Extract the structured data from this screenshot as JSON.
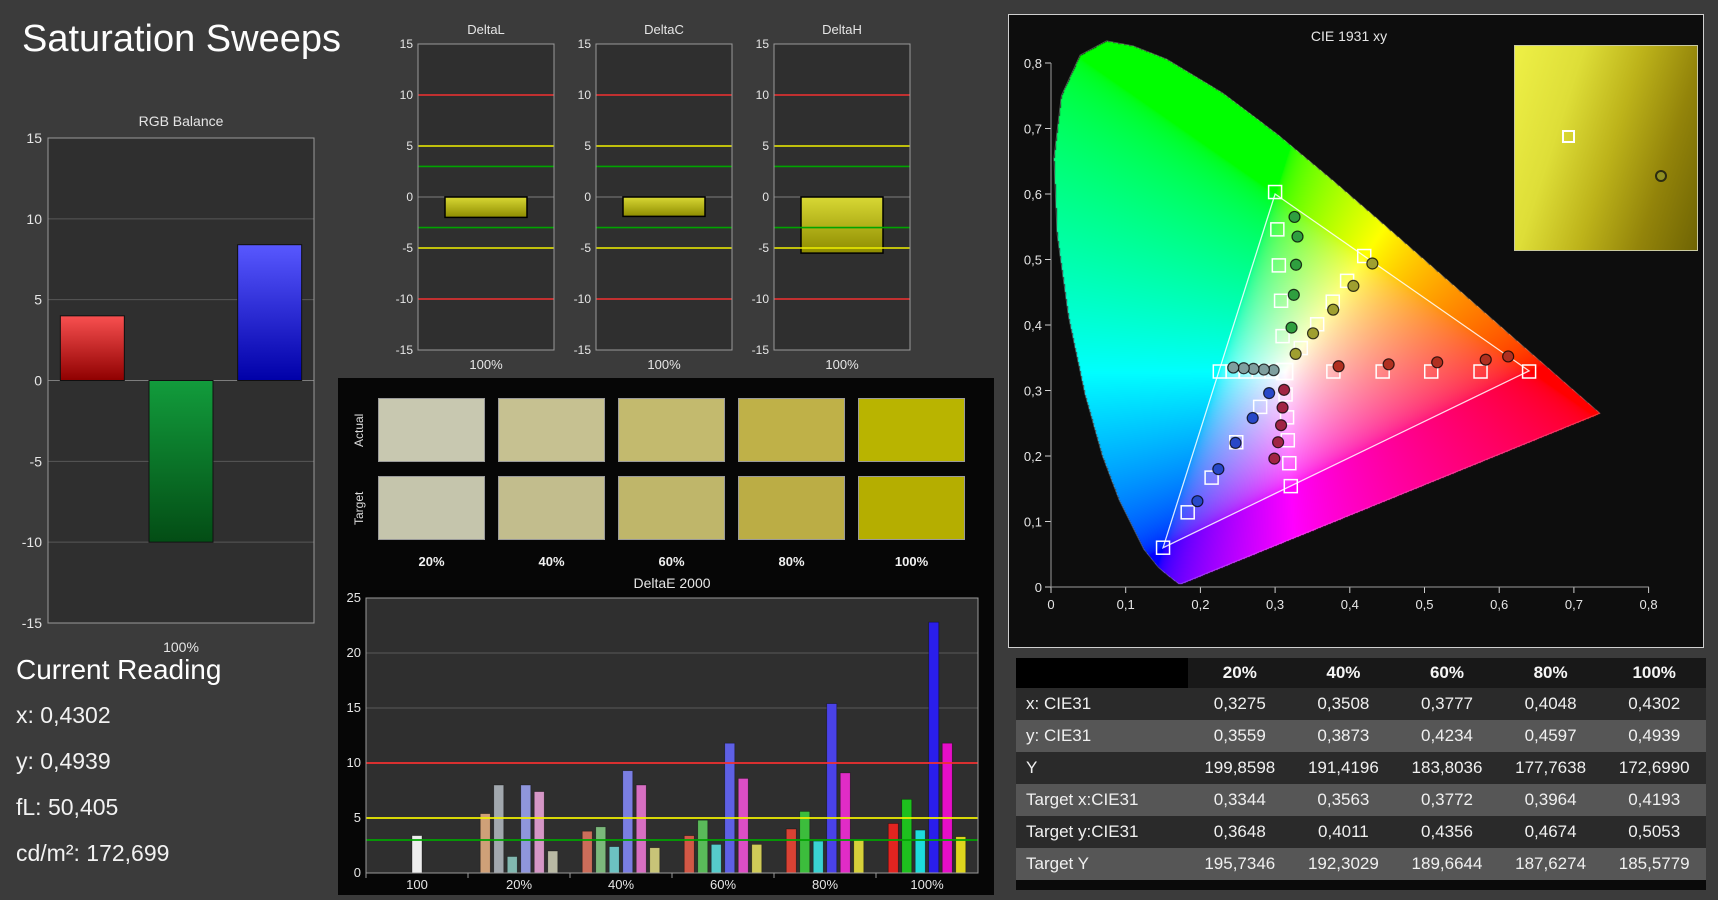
{
  "page": {
    "title": "Saturation Sweeps"
  },
  "current_reading": {
    "heading": "Current Reading",
    "items": [
      {
        "label": "x:",
        "value": "0,4302"
      },
      {
        "label": "y:",
        "value": "0,4939"
      },
      {
        "label": "fL:",
        "value": "50,405"
      },
      {
        "label": "cd/m²:",
        "value": "172,699"
      }
    ]
  },
  "colors": {
    "ref_green": "#00a400",
    "ref_yellow": "#f0f000",
    "ref_red": "#f23030",
    "grid": "#585858",
    "plot_bg": "#2f2f2f",
    "plot_border": "#9a9a9a",
    "text": "#e6e6e6"
  },
  "swatches": {
    "row_labels": [
      "Actual",
      "Target"
    ],
    "col_labels": [
      "20%",
      "40%",
      "60%",
      "80%",
      "100%"
    ],
    "actual": [
      "#c8c8b0",
      "#c6c191",
      "#c3ba6e",
      "#bfb148",
      "#b9b400"
    ],
    "target": [
      "#c5c5ac",
      "#c2bd8d",
      "#bfb66a",
      "#bbad45",
      "#b5ae00"
    ]
  },
  "table": {
    "columns": [
      "",
      "20%",
      "40%",
      "60%",
      "80%",
      "100%"
    ],
    "rows": [
      {
        "label": "x: CIE31",
        "values": [
          "0,3275",
          "0,3508",
          "0,3777",
          "0,4048",
          "0,4302"
        ]
      },
      {
        "label": "y: CIE31",
        "values": [
          "0,3559",
          "0,3873",
          "0,4234",
          "0,4597",
          "0,4939"
        ]
      },
      {
        "label": "Y",
        "values": [
          "199,8598",
          "191,4196",
          "183,8036",
          "177,7638",
          "172,6990"
        ]
      },
      {
        "label": "Target x:CIE31",
        "values": [
          "0,3344",
          "0,3563",
          "0,3772",
          "0,3964",
          "0,4193"
        ]
      },
      {
        "label": "Target y:CIE31",
        "values": [
          "0,3648",
          "0,4011",
          "0,4356",
          "0,4674",
          "0,5053"
        ]
      },
      {
        "label": "Target Y",
        "values": [
          "195,7346",
          "192,3029",
          "189,6644",
          "187,6274",
          "185,5779"
        ]
      }
    ]
  },
  "chart_data": [
    {
      "id": "rgb_balance",
      "type": "bar",
      "title": "RGB Balance",
      "xlabel": "100%",
      "ylim": [
        -15,
        15
      ],
      "ytick_step": 5,
      "categories": [
        "red",
        "green",
        "blue"
      ],
      "values": [
        4.0,
        -10.0,
        8.4
      ],
      "bar_colors": [
        [
          "#f85050",
          "#8f0000"
        ],
        [
          "#129c3c",
          "#034d15"
        ],
        [
          "#5858ff",
          "#0000a8"
        ]
      ]
    },
    {
      "id": "deltaL",
      "type": "bar",
      "title": "DeltaL",
      "xlabel": "100%",
      "ylim": [
        -15,
        15
      ],
      "ytick_step": 5,
      "categories": [
        "100%"
      ],
      "values": [
        -2.0
      ],
      "bar_color": [
        "#d8d834",
        "#8e8c00"
      ],
      "ref_lines": [
        3,
        5,
        10
      ]
    },
    {
      "id": "deltaC",
      "type": "bar",
      "title": "DeltaC",
      "xlabel": "100%",
      "ylim": [
        -15,
        15
      ],
      "ytick_step": 5,
      "categories": [
        "100%"
      ],
      "values": [
        -1.9
      ],
      "bar_color": [
        "#d8d834",
        "#8e8c00"
      ],
      "ref_lines": [
        3,
        5,
        10
      ]
    },
    {
      "id": "deltaH",
      "type": "bar",
      "title": "DeltaH",
      "xlabel": "100%",
      "ylim": [
        -15,
        15
      ],
      "ytick_step": 5,
      "categories": [
        "100%"
      ],
      "values": [
        -5.5
      ],
      "bar_color": [
        "#d8d834",
        "#8e8c00"
      ],
      "ref_lines": [
        3,
        5,
        10
      ]
    },
    {
      "id": "deltaE2000",
      "type": "bar",
      "title": "DeltaE 2000",
      "ylim": [
        0,
        25
      ],
      "ytick_step": 5,
      "ref_lines": [
        3,
        5,
        10
      ],
      "groups": [
        {
          "label": "100",
          "bars": [
            {
              "value": 3.4,
              "color": "#ededed"
            }
          ]
        },
        {
          "label": "20%",
          "bars": [
            {
              "value": 5.4,
              "color": "#cfa078"
            },
            {
              "value": 8.0,
              "color": "#a2a8ae"
            },
            {
              "value": 1.5,
              "color": "#82b8b0"
            },
            {
              "value": 8.0,
              "color": "#8f96dc"
            },
            {
              "value": 7.4,
              "color": "#d596c6"
            },
            {
              "value": 2.0,
              "color": "#b9b9a4"
            }
          ]
        },
        {
          "label": "40%",
          "bars": [
            {
              "value": 3.8,
              "color": "#cc6d5a"
            },
            {
              "value": 4.2,
              "color": "#7cb87c"
            },
            {
              "value": 2.4,
              "color": "#6cc2c2"
            },
            {
              "value": 9.3,
              "color": "#7a7ee2"
            },
            {
              "value": 8.0,
              "color": "#d76fc2"
            },
            {
              "value": 2.3,
              "color": "#c8c478"
            }
          ]
        },
        {
          "label": "60%",
          "bars": [
            {
              "value": 3.4,
              "color": "#d25846"
            },
            {
              "value": 4.8,
              "color": "#5aba5a"
            },
            {
              "value": 2.6,
              "color": "#56cbcb"
            },
            {
              "value": 11.8,
              "color": "#5e60e5"
            },
            {
              "value": 8.6,
              "color": "#dc4ec4"
            },
            {
              "value": 2.6,
              "color": "#cfca58"
            }
          ]
        },
        {
          "label": "80%",
          "bars": [
            {
              "value": 4.0,
              "color": "#d94234"
            },
            {
              "value": 5.6,
              "color": "#3cbd3c"
            },
            {
              "value": 2.9,
              "color": "#3ad2d2"
            },
            {
              "value": 15.4,
              "color": "#4a42e8"
            },
            {
              "value": 9.1,
              "color": "#e12cc6"
            },
            {
              "value": 3.0,
              "color": "#d6d03a"
            }
          ]
        },
        {
          "label": "100%",
          "bars": [
            {
              "value": 4.5,
              "color": "#e22420"
            },
            {
              "value": 6.7,
              "color": "#1ec11e"
            },
            {
              "value": 3.9,
              "color": "#1edcdc"
            },
            {
              "value": 22.8,
              "color": "#2a1eeb"
            },
            {
              "value": 11.8,
              "color": "#e60ec8"
            },
            {
              "value": 3.3,
              "color": "#ded51e"
            }
          ]
        }
      ]
    },
    {
      "id": "cie1931",
      "type": "scatter",
      "title": "CIE 1931 xy",
      "xlim": [
        0,
        0.8
      ],
      "ylim": [
        0,
        0.8
      ],
      "tick_step": 0.1,
      "tick_labels": [
        "0",
        "0,1",
        "0,2",
        "0,3",
        "0,4",
        "0,5",
        "0,6",
        "0,7",
        "0,8"
      ],
      "gamut_triangle": [
        [
          0.64,
          0.33
        ],
        [
          0.3,
          0.6
        ],
        [
          0.15,
          0.06
        ]
      ],
      "white_point": [
        0.3127,
        0.329
      ],
      "sweeps": [
        {
          "name": "red",
          "color": "#b03020",
          "targets": [
            [
              0.378,
              0.329
            ],
            [
              0.444,
              0.329
            ],
            [
              0.509,
              0.329
            ],
            [
              0.575,
              0.329
            ],
            [
              0.64,
              0.329
            ]
          ],
          "measured": [
            [
              0.385,
              0.337
            ],
            [
              0.452,
              0.34
            ],
            [
              0.517,
              0.343
            ],
            [
              0.582,
              0.347
            ],
            [
              0.612,
              0.352
            ]
          ]
        },
        {
          "name": "green",
          "color": "#2f9f3f",
          "targets": [
            [
              0.31,
              0.383
            ],
            [
              0.308,
              0.437
            ],
            [
              0.305,
              0.491
            ],
            [
              0.303,
              0.546
            ],
            [
              0.3,
              0.603
            ]
          ],
          "measured": [
            [
              0.322,
              0.396
            ],
            [
              0.325,
              0.446
            ],
            [
              0.328,
              0.492
            ],
            [
              0.33,
              0.535
            ],
            [
              0.326,
              0.565
            ]
          ]
        },
        {
          "name": "blue",
          "color": "#2848c8",
          "targets": [
            [
              0.28,
              0.275
            ],
            [
              0.248,
              0.221
            ],
            [
              0.215,
              0.167
            ],
            [
              0.183,
              0.114
            ],
            [
              0.15,
              0.06
            ]
          ],
          "measured": [
            [
              0.292,
              0.296
            ],
            [
              0.27,
              0.258
            ],
            [
              0.247,
              0.22
            ],
            [
              0.224,
              0.18
            ],
            [
              0.196,
              0.131
            ]
          ]
        },
        {
          "name": "cyan",
          "color": "#7f9f9f",
          "targets": [
            [
              0.295,
              0.329
            ],
            [
              0.278,
              0.329
            ],
            [
              0.261,
              0.329
            ],
            [
              0.243,
              0.329
            ],
            [
              0.226,
              0.329
            ]
          ],
          "measured": [
            [
              0.298,
              0.331
            ],
            [
              0.285,
              0.332
            ],
            [
              0.271,
              0.333
            ],
            [
              0.258,
              0.334
            ],
            [
              0.244,
              0.335
            ]
          ]
        },
        {
          "name": "magenta",
          "color": "#a02444",
          "targets": [
            [
              0.314,
              0.294
            ],
            [
              0.316,
              0.259
            ],
            [
              0.317,
              0.224
            ],
            [
              0.319,
              0.189
            ],
            [
              0.321,
              0.154
            ]
          ],
          "measured": [
            [
              0.312,
              0.301
            ],
            [
              0.31,
              0.274
            ],
            [
              0.308,
              0.247
            ],
            [
              0.304,
              0.221
            ],
            [
              0.299,
              0.196
            ]
          ]
        },
        {
          "name": "yellow",
          "color": "#9f9f30",
          "targets": [
            [
              0.3344,
              0.3648
            ],
            [
              0.3563,
              0.4011
            ],
            [
              0.3772,
              0.4356
            ],
            [
              0.3964,
              0.4674
            ],
            [
              0.4193,
              0.5053
            ]
          ],
          "measured": [
            [
              0.3275,
              0.3559
            ],
            [
              0.3508,
              0.3873
            ],
            [
              0.3777,
              0.4234
            ],
            [
              0.4048,
              0.4597
            ],
            [
              0.4302,
              0.4939
            ]
          ]
        }
      ],
      "spectral_locus": [
        [
          0.1741,
          0.005
        ],
        [
          0.1714,
          0.0051
        ],
        [
          0.1689,
          0.0069
        ],
        [
          0.1644,
          0.0109
        ],
        [
          0.1566,
          0.0177
        ],
        [
          0.144,
          0.0297
        ],
        [
          0.1241,
          0.0578
        ],
        [
          0.0913,
          0.1327
        ],
        [
          0.0687,
          0.2007
        ],
        [
          0.0454,
          0.295
        ],
        [
          0.0235,
          0.4127
        ],
        [
          0.0082,
          0.5384
        ],
        [
          0.0039,
          0.6548
        ],
        [
          0.0139,
          0.7502
        ],
        [
          0.0389,
          0.812
        ],
        [
          0.0743,
          0.8338
        ],
        [
          0.1096,
          0.8262
        ],
        [
          0.1547,
          0.8059
        ],
        [
          0.2296,
          0.7543
        ],
        [
          0.3016,
          0.6923
        ],
        [
          0.3731,
          0.6245
        ],
        [
          0.4441,
          0.5547
        ],
        [
          0.5125,
          0.4866
        ],
        [
          0.5752,
          0.4242
        ],
        [
          0.627,
          0.3725
        ],
        [
          0.6658,
          0.334
        ],
        [
          0.6915,
          0.3083
        ],
        [
          0.7079,
          0.292
        ],
        [
          0.719,
          0.2809
        ],
        [
          0.726,
          0.274
        ],
        [
          0.7347,
          0.2653
        ]
      ],
      "inset": {
        "square": [
          0.26,
          0.41
        ],
        "circle": [
          0.77,
          0.61
        ]
      }
    }
  ]
}
